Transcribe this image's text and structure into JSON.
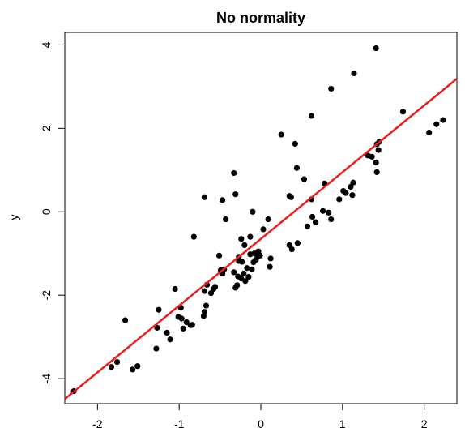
{
  "chart_data": {
    "type": "scatter",
    "title": "No normality",
    "xlabel": "",
    "ylabel": "y",
    "xlim": [
      -2.4,
      2.4
    ],
    "ylim": [
      -4.6,
      4.3
    ],
    "xticks": [
      -2,
      -1,
      0,
      1,
      2
    ],
    "yticks": [
      -4,
      -2,
      0,
      2,
      4
    ],
    "xtick_labels": [
      "-2",
      "-1",
      "0",
      "1",
      "2"
    ],
    "ytick_labels": [
      "-4",
      "-2",
      "0",
      "2",
      "4"
    ],
    "grid": false,
    "legend": "none",
    "point_color": "#000000",
    "line_color": "#ee1c1c",
    "fit_line": {
      "intercept": -0.65,
      "slope": 1.6
    },
    "series": [
      {
        "x": [
          -2.29,
          -1.83,
          -1.76,
          -1.66,
          -1.57,
          -1.51,
          -1.28,
          -1.27,
          -1.25,
          -1.15,
          -1.11,
          -1.05,
          -1.01,
          -0.98,
          -0.97,
          -0.95,
          -0.91,
          -0.86,
          -0.84,
          -0.82,
          -0.7,
          -0.69,
          -0.69,
          -0.67,
          -0.66,
          -0.61,
          -0.58,
          -0.56,
          -0.51,
          -0.49,
          -0.47,
          -0.45,
          -0.33,
          -0.31,
          -0.29,
          -0.28,
          -0.27,
          -0.24,
          -0.23,
          -0.21,
          -0.19,
          -0.17,
          -0.15,
          -0.13,
          -0.11,
          -0.09,
          -0.08,
          -0.06,
          -0.04,
          -0.03,
          -0.01,
          0.11,
          0.12,
          -0.27,
          -0.24,
          -0.2,
          -0.13,
          0.03,
          0.09,
          -0.69,
          -0.47,
          -0.43,
          -0.33,
          -0.31,
          -0.1,
          0.25,
          0.35,
          0.37,
          0.42,
          0.44,
          0.53,
          0.62,
          0.35,
          0.38,
          0.45,
          0.57,
          0.63,
          0.67,
          0.76,
          0.78,
          0.83,
          0.86,
          0.96,
          1.01,
          1.04,
          1.1,
          1.12,
          1.13,
          0.62,
          0.86,
          1.14,
          1.41,
          1.31,
          1.36,
          1.42,
          1.41,
          1.42,
          1.44,
          1.45,
          1.74,
          2.06,
          2.15,
          2.23
        ],
        "y": [
          -4.3,
          -3.72,
          -3.6,
          -2.6,
          -3.78,
          -3.7,
          -3.28,
          -2.78,
          -2.35,
          -2.9,
          -3.06,
          -1.85,
          -2.52,
          -2.3,
          -2.56,
          -2.8,
          -2.65,
          -2.72,
          -2.71,
          -0.6,
          -2.5,
          -2.4,
          -1.9,
          -2.25,
          -1.75,
          -1.95,
          -1.85,
          -1.8,
          -1.05,
          -1.4,
          -1.48,
          -1.38,
          -1.45,
          -1.82,
          -1.76,
          -1.55,
          -1.08,
          -1.6,
          -1.2,
          -1.48,
          -1.66,
          -1.35,
          -1.56,
          -1.02,
          -1.38,
          -1.21,
          -1.0,
          -1.15,
          -1.08,
          -0.95,
          -1.05,
          -1.32,
          -1.12,
          -1.18,
          -0.65,
          -0.8,
          -0.6,
          -0.42,
          -0.18,
          0.35,
          0.28,
          -0.18,
          0.93,
          0.42,
          0.0,
          1.85,
          0.38,
          0.35,
          1.63,
          1.05,
          0.78,
          0.3,
          -0.8,
          -0.9,
          -0.75,
          -0.35,
          -0.12,
          -0.25,
          0.02,
          0.68,
          -0.02,
          -0.18,
          0.3,
          0.5,
          0.45,
          0.6,
          0.4,
          0.7,
          2.3,
          2.95,
          3.32,
          3.92,
          1.35,
          1.32,
          1.62,
          1.18,
          0.95,
          1.48,
          1.68,
          2.4,
          1.9,
          2.1,
          2.2
        ]
      }
    ]
  }
}
